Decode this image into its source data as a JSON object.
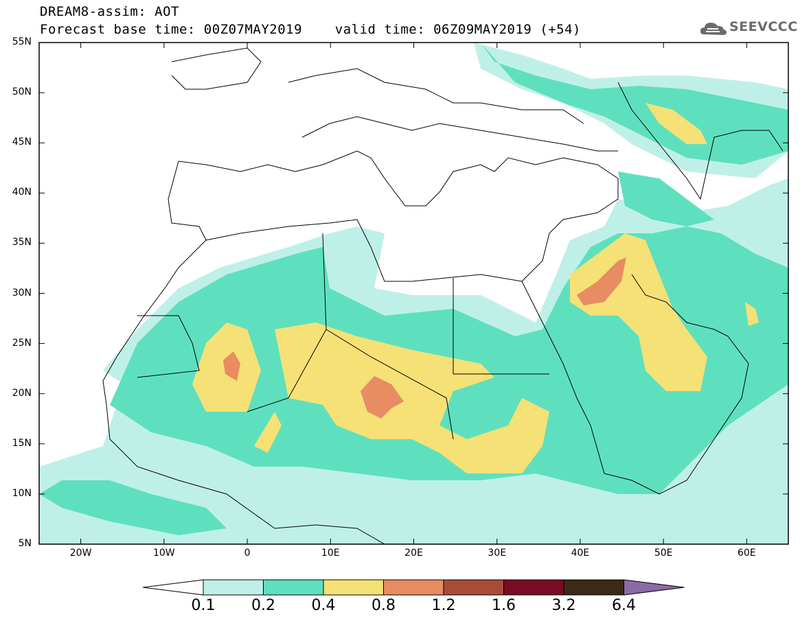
{
  "header": {
    "line1": "DREAM8-assim: AOT",
    "line2": "Forecast base time: 00Z07MAY2019    valid time: 06Z09MAY2019 (+54)"
  },
  "logo": {
    "text": "SEEVCCC",
    "icon": "cloud-icon"
  },
  "map": {
    "lat_labels": [
      "55N",
      "50N",
      "45N",
      "40N",
      "35N",
      "30N",
      "25N",
      "20N",
      "15N",
      "10N",
      "5N"
    ],
    "lon_labels": [
      "20W",
      "10W",
      "0",
      "10E",
      "20E",
      "30E",
      "40E",
      "50E",
      "60E"
    ],
    "lon_range": [
      -25,
      65
    ],
    "lat_range": [
      5,
      55
    ]
  },
  "colorbar": {
    "labels": [
      "0.1",
      "0.2",
      "0.4",
      "0.8",
      "1.2",
      "1.6",
      "3.2",
      "6.4"
    ],
    "colors": [
      "#ffffff",
      "#bff0e8",
      "#5ee0be",
      "#f5e176",
      "#e88c62",
      "#a84c3a",
      "#7a0b25",
      "#3b2a16",
      "#8c6aa6"
    ]
  }
}
